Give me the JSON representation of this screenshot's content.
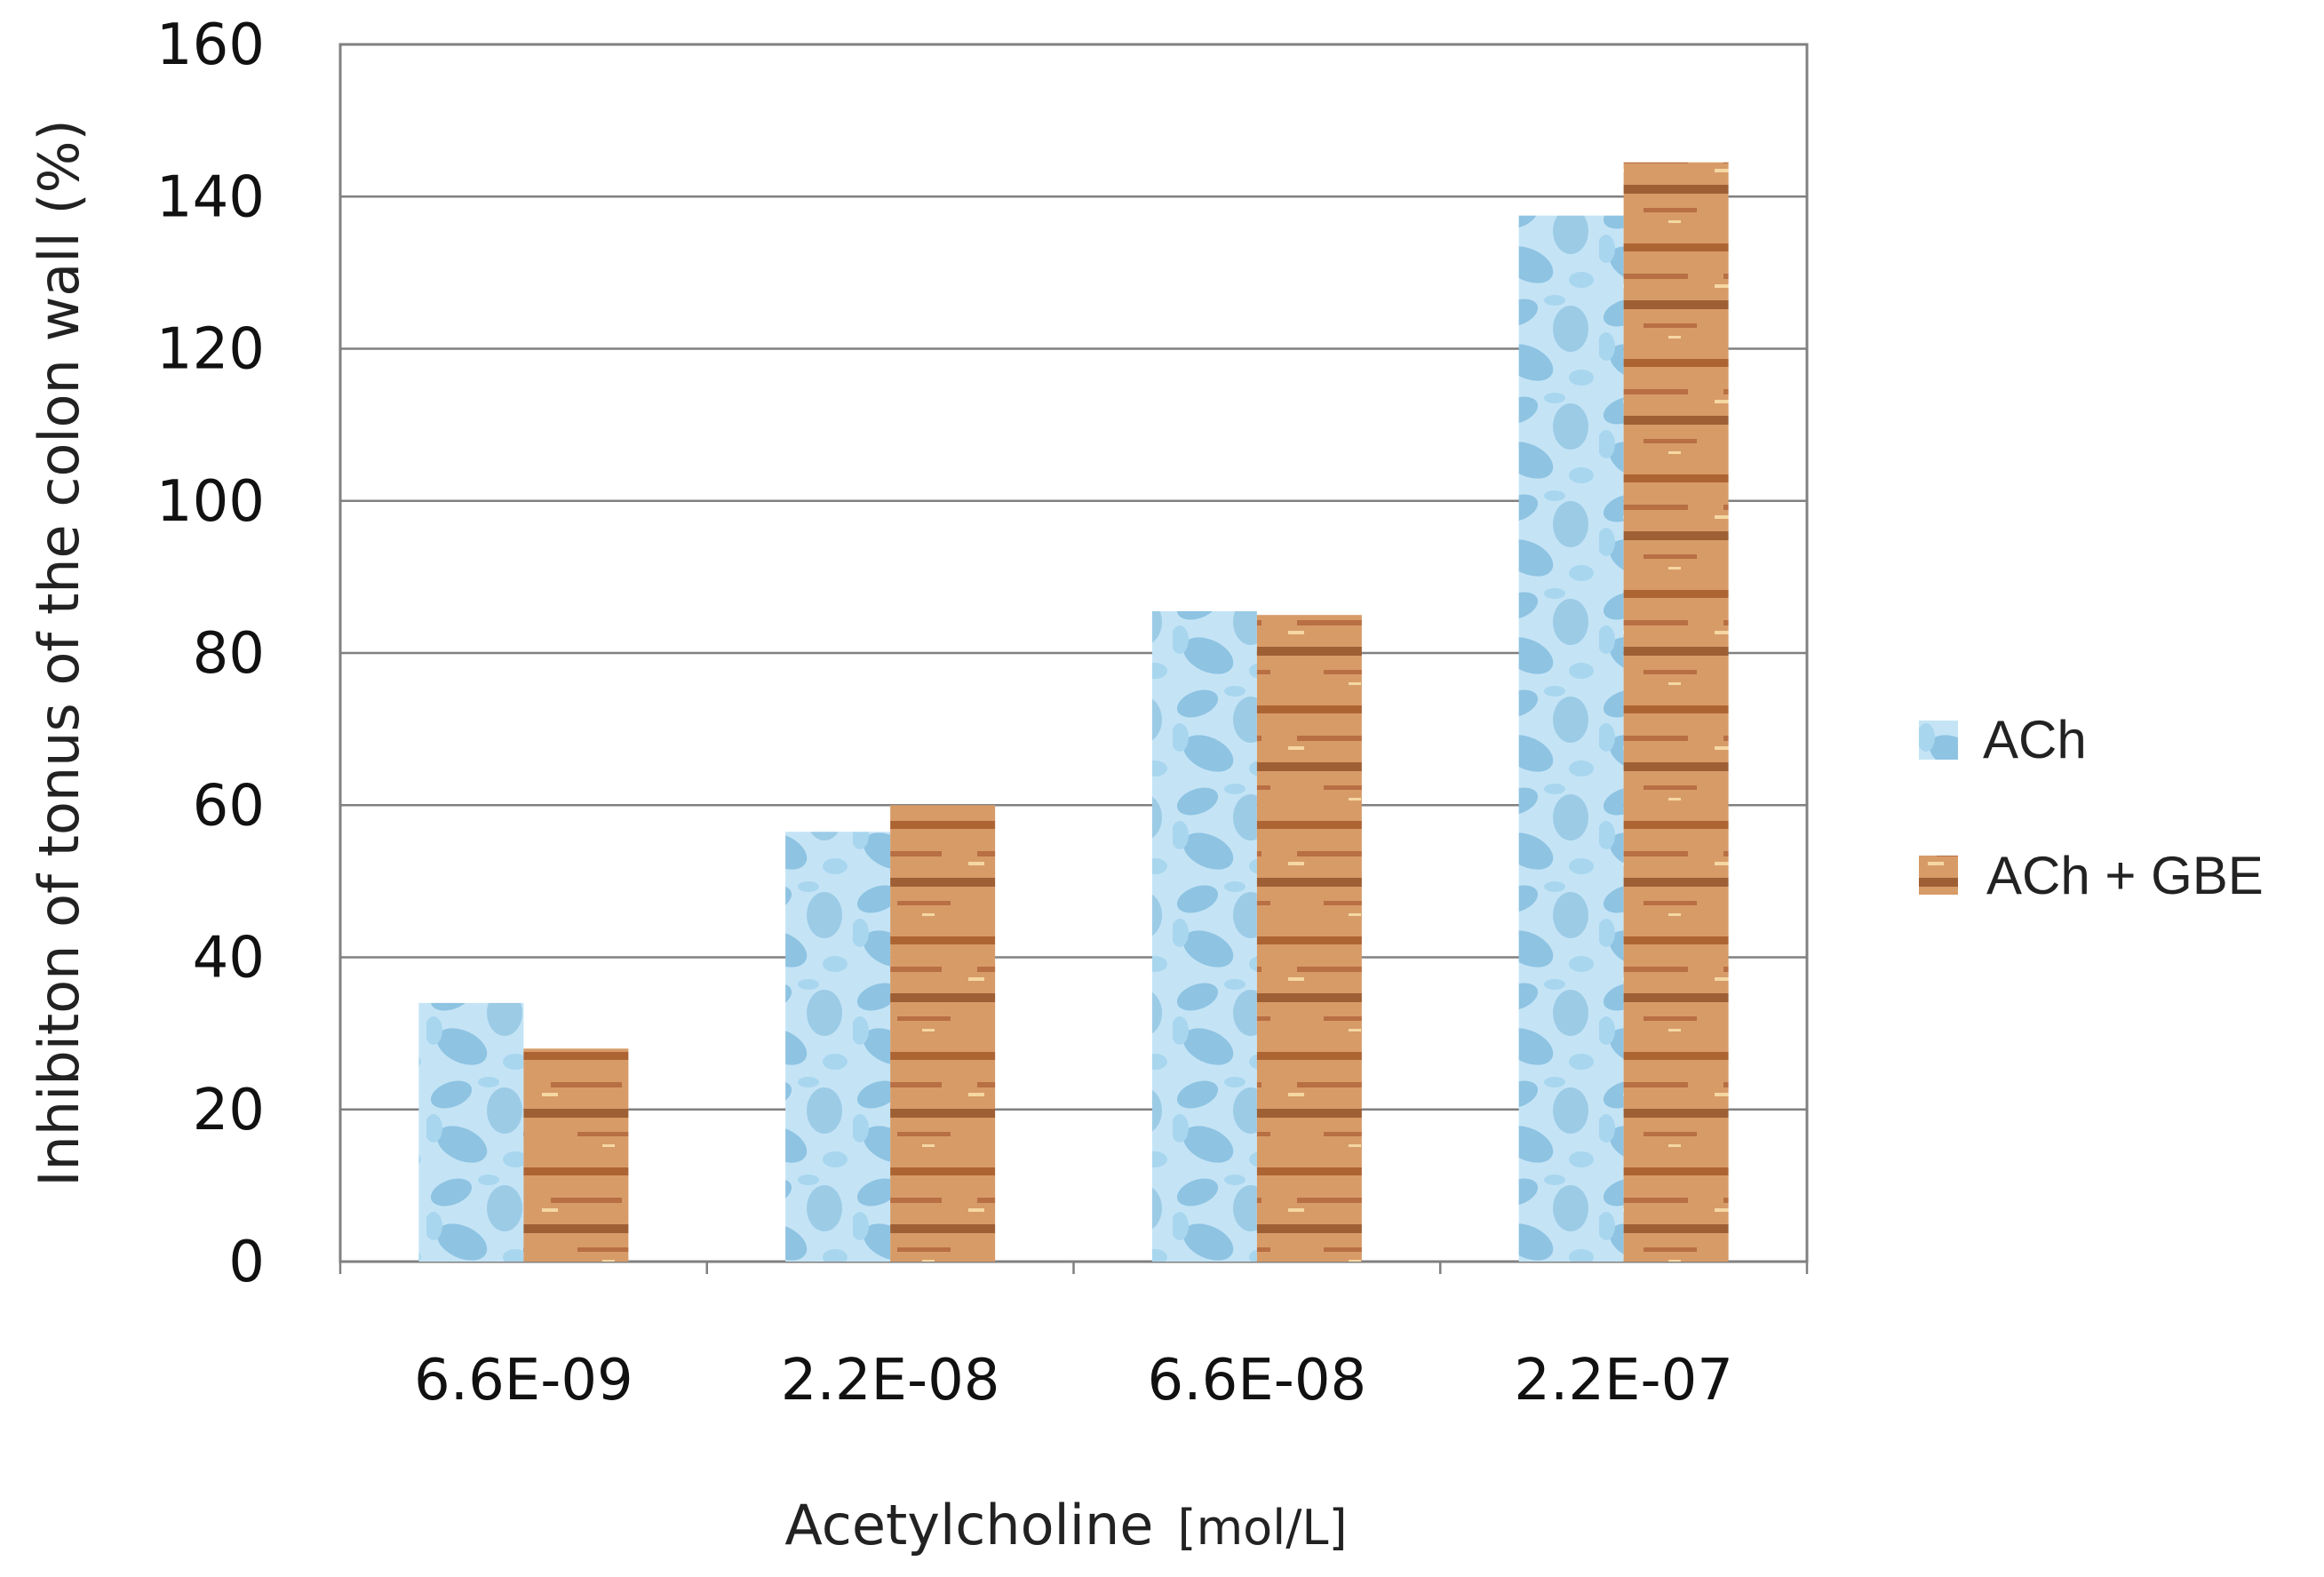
{
  "chart_data": {
    "type": "bar",
    "title": "",
    "xlabel": "Acetylcholine",
    "xlabel_unit": "[mol/L]",
    "ylabel": "Inhibiton of tonus  of the colon wall (%)",
    "ylim": [
      0,
      160
    ],
    "yticks": [
      0,
      20,
      40,
      60,
      80,
      100,
      120,
      140,
      160
    ],
    "grid": true,
    "legend_position": "right",
    "categories": [
      "6.6E-09",
      "2.2E-08",
      "6.6E-08",
      "2.2E-07"
    ],
    "series": [
      {
        "name": "ACh",
        "values": [
          34,
          56.5,
          85.5,
          137.5
        ]
      },
      {
        "name": "ACh + GBE",
        "values": [
          28,
          60,
          85,
          144.5
        ]
      }
    ]
  },
  "colors": {
    "ach_base": "#c4e4f6",
    "ach_blob": "#8ec3e2",
    "ach_blob2": "#a8d6ee",
    "gbe_base": "#d79b68",
    "gbe_band": "#a65a2a",
    "gbe_band2": "#8a4a22",
    "gbe_spark": "#f5d7a2",
    "grid": "#808080",
    "axis": "#808080"
  }
}
